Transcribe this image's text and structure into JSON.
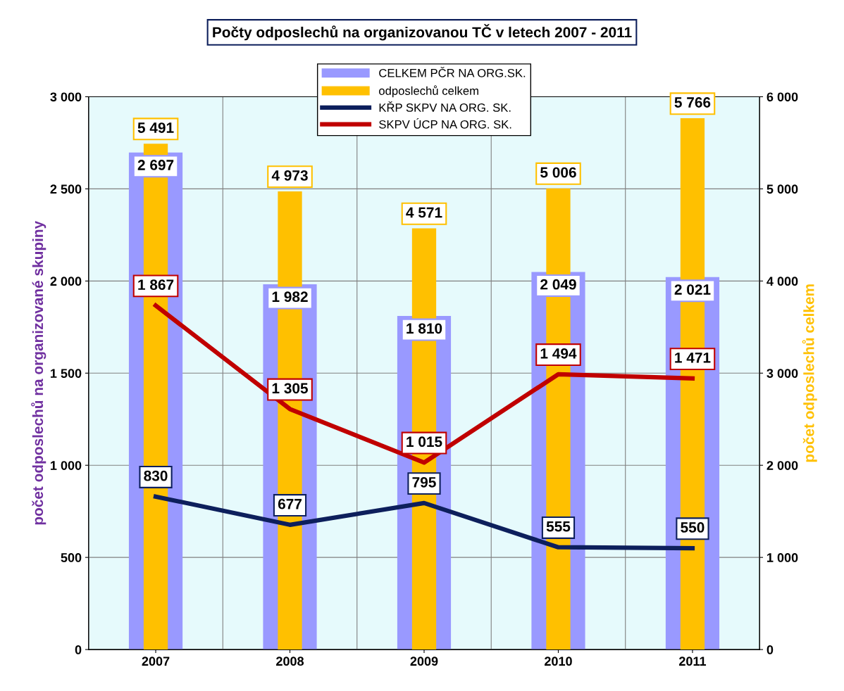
{
  "chart_data": {
    "type": "bar",
    "title": "Počty odposlechů na organizovanou TČ v letech 2007 - 2011",
    "categories": [
      "2007",
      "2008",
      "2009",
      "2010",
      "2011"
    ],
    "ylabel": "počet odposlechů na organizované skupiny",
    "y2label": "počet odposlechů celkem",
    "ylim": [
      0,
      3000
    ],
    "yticks": [
      0,
      {
        "value": 500,
        "label": "500"
      },
      {
        "value": 1000,
        "label": "1 000"
      },
      {
        "value": 1500,
        "label": "1 500"
      },
      {
        "value": 2000,
        "label": "2 000"
      },
      {
        "value": 2500,
        "label": "2 500"
      },
      {
        "value": 3000,
        "label": "3 000"
      }
    ],
    "y2lim": [
      0,
      6000
    ],
    "y2ticks": [
      0,
      {
        "value": 1000,
        "label": "1 000"
      },
      {
        "value": 2000,
        "label": "2 000"
      },
      {
        "value": 3000,
        "label": "3 000"
      },
      {
        "value": 4000,
        "label": "4 000"
      },
      {
        "value": 5000,
        "label": "5 000"
      },
      {
        "value": 6000,
        "label": "6 000"
      }
    ],
    "grid": true,
    "legend": "top",
    "series": [
      {
        "name": "CELKEM PČR NA ORG.SK.",
        "color": "#9999ff",
        "values": [
          2697,
          1982,
          1810,
          2049,
          2021
        ],
        "value_labels": [
          "2 697",
          "1 982",
          "1 810",
          "2 049",
          "2 021"
        ]
      },
      {
        "name": "odposlechů celkem",
        "axis": "y2",
        "color": "#ffc000",
        "values": [
          5491,
          4973,
          4571,
          5006,
          5766
        ],
        "value_labels": [
          "5 491",
          "4 973",
          "4 571",
          "5 006",
          "5 766"
        ]
      },
      {
        "name": "KŘP SKPV NA ORG. SK.",
        "type": "line",
        "color": "#0d1f5c",
        "values": [
          830,
          677,
          795,
          555,
          550
        ],
        "value_labels": [
          "830",
          "677",
          "795",
          "555",
          "550"
        ]
      },
      {
        "name": "SKPV ÚCP NA ORG. SK.",
        "type": "line",
        "color": "#c00000",
        "values": [
          1867,
          1305,
          1015,
          1494,
          1471
        ],
        "value_labels": [
          "1 867",
          "1 305",
          "1 015",
          "1 494",
          "1 471"
        ]
      }
    ]
  }
}
